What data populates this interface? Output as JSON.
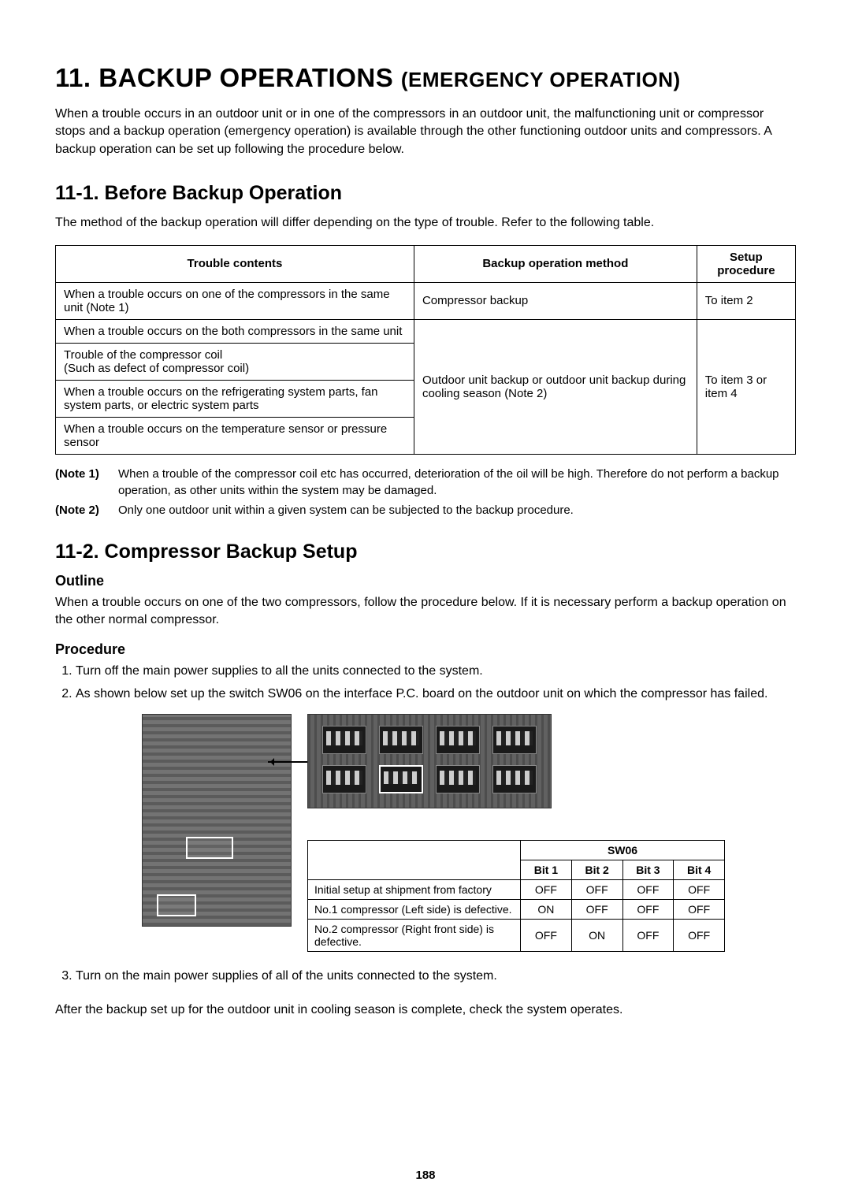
{
  "page": {
    "number": "188",
    "main_title_num": "11.",
    "main_title": "BACKUP OPERATIONS",
    "main_title_sub": "(EMERGENCY OPERATION)",
    "intro": "When a trouble occurs in an outdoor unit or in one of the compressors in an outdoor unit, the malfunctioning unit or compressor stops and a backup operation (emergency operation) is available through the other functioning outdoor units and compressors. A backup operation can be set up following the procedure below."
  },
  "section1": {
    "title": "11-1.  Before Backup Operation",
    "para": "The method of the backup operation will differ depending on the type of trouble. Refer to the following table.",
    "table": {
      "headers": [
        "Trouble contents",
        "Backup operation method",
        "Setup procedure"
      ],
      "rows": [
        {
          "trouble": "When a trouble occurs on one of the compressors in the same unit (Note 1)",
          "method": "Compressor backup",
          "setup": "To item 2"
        },
        {
          "trouble": "When a trouble occurs on the both compressors in the same unit"
        },
        {
          "trouble": "Trouble of the compressor coil\n(Such as defect of compressor coil)"
        },
        {
          "trouble": "When a trouble occurs on the refrigerating system parts, fan system parts, or electric system parts"
        },
        {
          "trouble": "When a trouble occurs on the temperature sensor or pressure sensor"
        }
      ],
      "merged_method": "Outdoor unit backup or outdoor unit backup during cooling season (Note 2)",
      "merged_setup": "To item 3 or item 4"
    },
    "notes": [
      {
        "label": "(Note 1)",
        "text": "When a trouble of the compressor coil etc has occurred, deterioration of the oil will be high. Therefore do not perform a backup operation, as other units within the system may be damaged."
      },
      {
        "label": "(Note 2)",
        "text": "Only one outdoor unit within a given system can be subjected to the backup procedure."
      }
    ]
  },
  "section2": {
    "title": "11-2.  Compressor Backup Setup",
    "outline_label": "Outline",
    "outline_text": "When a trouble occurs on one of the two compressors, follow the procedure below.  If it is necessary perform a backup operation on the other normal compressor.",
    "procedure_label": "Procedure",
    "procedure": [
      "Turn off the main power supplies to all the units connected to the system.",
      "As shown below set up the switch SW06 on the interface P.C. board on the outdoor unit on which the compressor has failed."
    ],
    "sw06_table": {
      "title": "SW06",
      "bits": [
        "Bit 1",
        "Bit 2",
        "Bit 3",
        "Bit 4"
      ],
      "rows": [
        {
          "desc": "Initial setup at shipment from factory",
          "v": [
            "OFF",
            "OFF",
            "OFF",
            "OFF"
          ]
        },
        {
          "desc": "No.1 compressor (Left side) is defective.",
          "v": [
            "ON",
            "OFF",
            "OFF",
            "OFF"
          ]
        },
        {
          "desc": "No.2 compressor (Right front side) is defective.",
          "v": [
            "OFF",
            "ON",
            "OFF",
            "OFF"
          ]
        }
      ]
    },
    "procedure3": "Turn on the main power supplies of all of the units connected to the system.",
    "after": "After the backup set up for the outdoor unit in cooling season is complete, check the system operates."
  }
}
